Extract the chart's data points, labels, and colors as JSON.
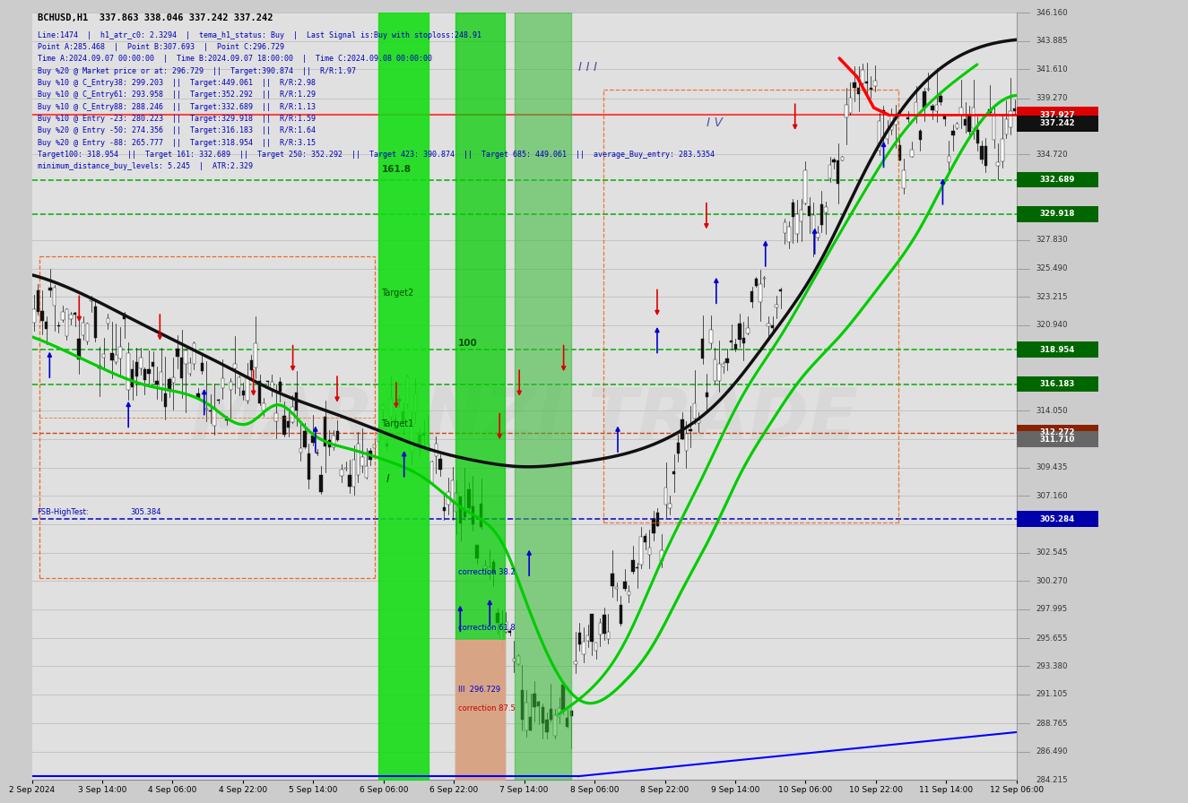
{
  "title": "BCHUSD,H1  337.863 338.046 337.242 337.242",
  "info_lines": [
    "Line:1474  |  h1_atr_c0: 2.3294  |  tema_h1_status: Buy  |  Last Signal is:Buy with stoploss:248.91",
    "Point A:285.468  |  Point B:307.693  |  Point C:296.729",
    "Time A:2024.09.07 00:00:00  |  Time B:2024.09.07 18:00:00  |  Time C:2024.09.08 00:00:00",
    "Buy %20 @ Market price or at: 296.729  ||  Target:390.874  ||  R/R:1.97",
    "Buy %10 @ C_Entry38: 299.203  ||  Target:449.061  ||  R/R:2.98",
    "Buy %10 @ C_Entry61: 293.958  ||  Target:352.292  ||  R/R:1.29",
    "Buy %10 @ C_Entry88: 288.246  ||  Target:332.689  ||  R/R:1.13",
    "Buy %10 @ Entry -23: 280.223  ||  Target:329.918  ||  R/R:1.59",
    "Buy %20 @ Entry -50: 274.356  ||  Target:316.183  ||  R/R:1.64",
    "Buy %20 @ Entry -88: 265.777  ||  Target:318.954  ||  R/R:3.15",
    "Target100: 318.954  ||  Target 161: 332.689  ||  Target 250: 352.292  ||  Target 423: 390.874  ||  Target 685: 449.061  ||  average_Buy_entry: 283.5354",
    "minimum_distance_buy_levels: 5.245  |  ATR:2.329"
  ],
  "y_min": 284.215,
  "y_max": 346.16,
  "x_labels": [
    "2 Sep 2024",
    "3 Sep 14:00",
    "4 Sep 06:00",
    "4 Sep 22:00",
    "5 Sep 14:00",
    "6 Sep 06:00",
    "6 Sep 22:00",
    "7 Sep 14:00",
    "8 Sep 06:00",
    "8 Sep 22:00",
    "9 Sep 14:00",
    "10 Sep 06:00",
    "10 Sep 22:00",
    "11 Sep 14:00",
    "12 Sep 06:00"
  ],
  "grid_levels": [
    346.16,
    343.885,
    341.61,
    339.27,
    334.72,
    327.83,
    325.49,
    323.215,
    320.94,
    314.05,
    311.71,
    309.435,
    307.16,
    304.82,
    302.545,
    300.27,
    297.995,
    295.655,
    293.38,
    291.105,
    288.765,
    286.49,
    284.215
  ],
  "special_lines": {
    "337.927": {
      "color": "#ff3333",
      "ls": "solid",
      "lw": 1.5
    },
    "332.689": {
      "color": "#00aa00",
      "ls": "dashed",
      "lw": 1.2
    },
    "329.918": {
      "color": "#00aa00",
      "ls": "dashed",
      "lw": 1.2
    },
    "318.954": {
      "color": "#00aa00",
      "ls": "dashed",
      "lw": 1.2
    },
    "316.183": {
      "color": "#00aa00",
      "ls": "dashed",
      "lw": 1.2
    },
    "312.272": {
      "color": "#cc3300",
      "ls": "dashed",
      "lw": 1.0
    },
    "305.284": {
      "color": "#0000cc",
      "ls": "dashed",
      "lw": 1.2
    }
  },
  "right_labels": [
    {
      "price": 337.927,
      "bg": "#dd0000",
      "fg": "#ffffff"
    },
    {
      "price": 337.242,
      "bg": "#111111",
      "fg": "#ffffff"
    },
    {
      "price": 332.689,
      "bg": "#006600",
      "fg": "#ffffff"
    },
    {
      "price": 329.918,
      "bg": "#006600",
      "fg": "#ffffff"
    },
    {
      "price": 318.954,
      "bg": "#006600",
      "fg": "#ffffff"
    },
    {
      "price": 316.183,
      "bg": "#006600",
      "fg": "#ffffff"
    },
    {
      "price": 312.272,
      "bg": "#882200",
      "fg": "#ffffff"
    },
    {
      "price": 311.71,
      "bg": "#666666",
      "fg": "#ffffff"
    },
    {
      "price": 305.284,
      "bg": "#0000aa",
      "fg": "#ffffff"
    }
  ],
  "watermark": "MARENZI TRADE",
  "chart_bg": "#e0e0e0",
  "fig_bg": "#cccccc"
}
